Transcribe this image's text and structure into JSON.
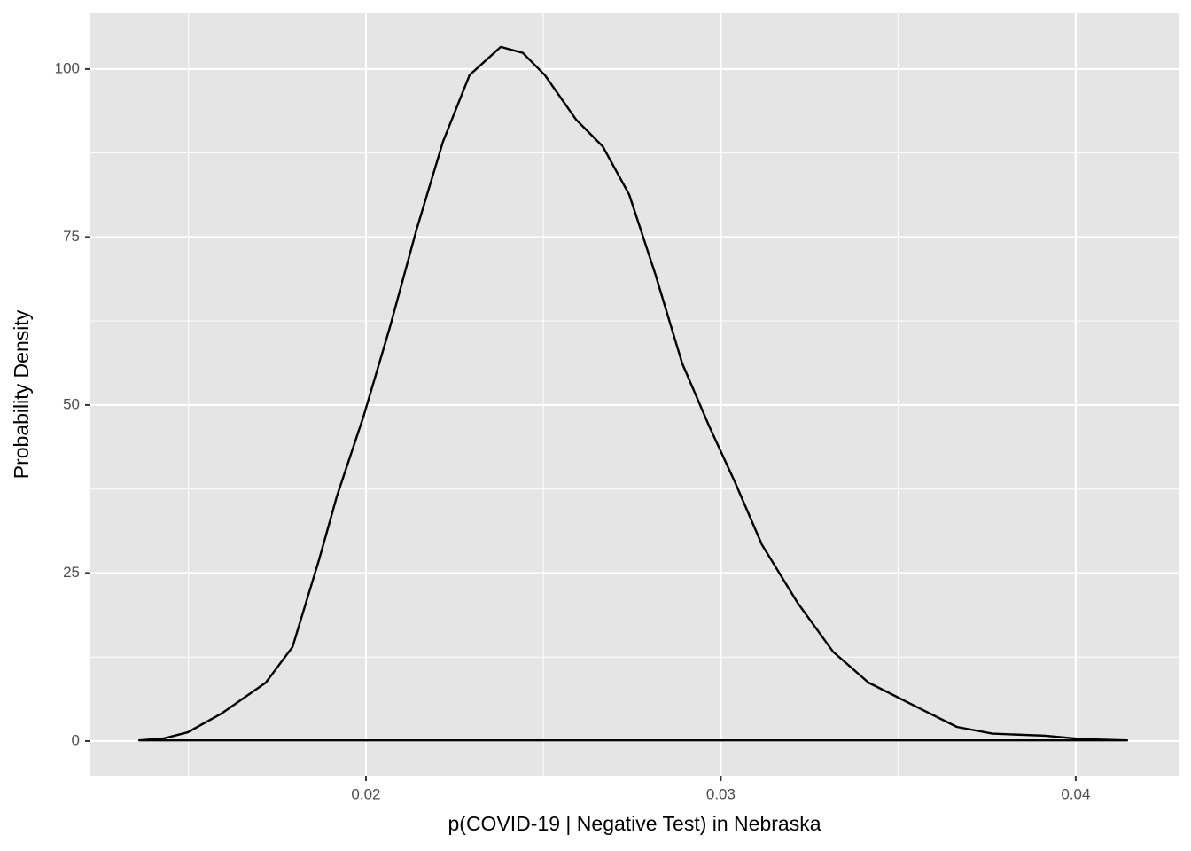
{
  "chart_data": {
    "type": "density",
    "x_label": "p(COVID-19 | Negative Test) in Nebraska",
    "y_label": "Probability Density",
    "x": [
      0.01361,
      0.01431,
      0.01498,
      0.01593,
      0.01718,
      0.01793,
      0.01868,
      0.01918,
      0.01993,
      0.02067,
      0.02142,
      0.02217,
      0.02292,
      0.0238,
      0.02442,
      0.02504,
      0.02592,
      0.02667,
      0.02742,
      0.02816,
      0.02891,
      0.02966,
      0.03041,
      0.03116,
      0.03216,
      0.03316,
      0.03416,
      0.03566,
      0.03665,
      0.03765,
      0.03915,
      0.04015,
      0.04145
    ],
    "values": [
      0.1,
      0.4,
      1.3,
      4.1,
      8.7,
      14,
      27,
      36.4,
      48.3,
      61.5,
      76,
      89.2,
      99.1,
      103.3,
      102.4,
      99.1,
      92.5,
      88.5,
      81.3,
      69.4,
      56.2,
      47,
      38.4,
      29.2,
      20.6,
      13.3,
      8.7,
      4.7,
      2.1,
      1.1,
      0.8,
      0.3,
      0.1
    ],
    "color": "#000000",
    "xlim": [
      0.012235,
      0.0429
    ],
    "ylim": [
      -5.15,
      108.3
    ],
    "xticks": [
      0.02,
      0.03,
      0.04
    ],
    "yticks": [
      0,
      25,
      50,
      75,
      100
    ],
    "x_minor_ticks": [
      0.015,
      0.025,
      0.035
    ],
    "y_minor_ticks": [
      12.5,
      37.5,
      62.5,
      87.5
    ],
    "grid": true
  }
}
